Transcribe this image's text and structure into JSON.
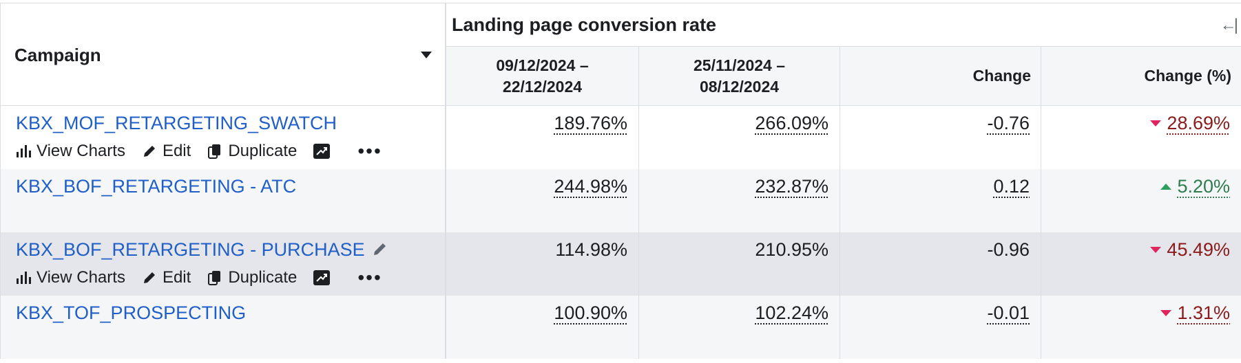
{
  "header": {
    "campaign_label": "Campaign",
    "group_title": "Landing page conversion rate",
    "collapse_icon": "collapse-left-icon",
    "columns": {
      "period1": "09/12/2024 –\n22/12/2024",
      "period2": "25/11/2024 –\n08/12/2024",
      "change": "Change",
      "change_pct": "Change (%)"
    }
  },
  "actions": {
    "view_charts": "View Charts",
    "edit": "Edit",
    "duplicate": "Duplicate",
    "more": "•••"
  },
  "rows": [
    {
      "name": "KBX_MOF_RETARGETING_SWATCH",
      "period1": "189.76%",
      "period2": "266.09%",
      "change": "-0.76",
      "change_pct": "28.69%",
      "direction": "down"
    },
    {
      "name": "KBX_BOF_RETARGETING - ATC",
      "period1": "244.98%",
      "period2": "232.87%",
      "change": "0.12",
      "change_pct": "5.20%",
      "direction": "up"
    },
    {
      "name": "KBX_BOF_RETARGETING - PURCHASE",
      "period1": "114.98%",
      "period2": "210.95%",
      "change": "-0.96",
      "change_pct": "45.49%",
      "direction": "down"
    },
    {
      "name": "KBX_TOF_PROSPECTING",
      "period1": "100.90%",
      "period2": "102.24%",
      "change": "-0.01",
      "change_pct": "1.31%",
      "direction": "down"
    }
  ],
  "colors": {
    "link": "#1f5fc7",
    "row_alt": "#f5f6f7",
    "row_hover": "#e4e6eb",
    "negative": "#8b1a1a",
    "positive": "#2e7d4f"
  }
}
